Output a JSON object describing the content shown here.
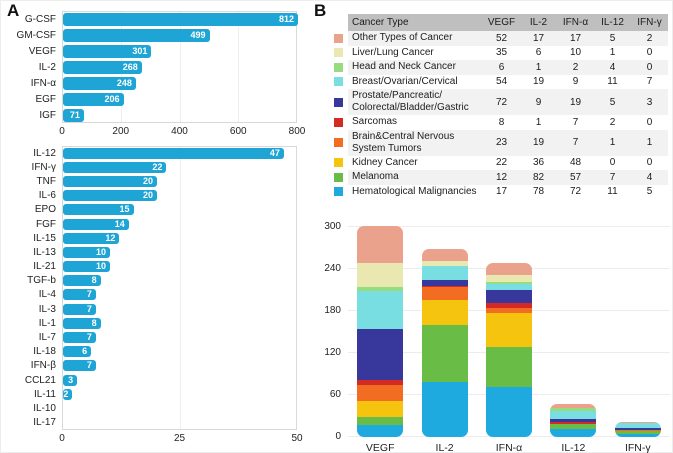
{
  "panel_a_label": "A",
  "panel_b_label": "B",
  "chart_data": [
    {
      "id": "cytokines-high-count",
      "type": "bar",
      "orientation": "horizontal",
      "title": "",
      "categories": [
        "G-CSF",
        "GM-CSF",
        "VEGF",
        "IL-2",
        "IFN-α",
        "EGF",
        "IGF"
      ],
      "values": [
        812,
        499,
        301,
        268,
        248,
        206,
        71
      ],
      "xlim": [
        0,
        800
      ],
      "x_ticks": [
        0,
        200,
        400,
        600,
        800
      ],
      "bar_color": "#1ea5d5",
      "value_labels": "inside-end, white"
    },
    {
      "id": "cytokines-low-count",
      "type": "bar",
      "orientation": "horizontal",
      "title": "",
      "categories": [
        "IL-12",
        "IFN-γ",
        "TNF",
        "IL-6",
        "EPO",
        "FGF",
        "IL-15",
        "IL-13",
        "IL-21",
        "TGF-b",
        "IL-4",
        "IL-3",
        "IL-1",
        "IL-7",
        "IL-18",
        "IFN-β",
        "CCL21",
        "IL-11",
        "IL-10",
        "IL-17"
      ],
      "values": [
        47,
        22,
        20,
        20,
        15,
        14,
        12,
        10,
        10,
        8,
        7,
        7,
        8,
        7,
        6,
        7,
        3,
        2,
        null,
        null
      ],
      "xlim": [
        0,
        50
      ],
      "x_ticks": [
        0,
        25,
        50
      ],
      "bar_color": "#1ea5d5",
      "value_labels": "inside-end, white"
    },
    {
      "id": "cancer-type-table",
      "type": "table",
      "columns": [
        "Cancer Type",
        "VEGF",
        "IL-2",
        "IFN-α",
        "IL-12",
        "IFN-γ"
      ],
      "header_bg": "#bfbfbf",
      "stripe_bg": "#f2f2f2",
      "rows": [
        {
          "name": "Other Types of Cancer",
          "color": "#eba28d",
          "values": [
            52,
            17,
            17,
            5,
            2
          ]
        },
        {
          "name": "Liver/Lung Cancer",
          "color": "#e9e8b1",
          "values": [
            35,
            6,
            10,
            1,
            0
          ]
        },
        {
          "name": "Head and Neck Cancer",
          "color": "#97dd80",
          "values": [
            6,
            1,
            2,
            4,
            0
          ]
        },
        {
          "name": "Breast/Ovarian/Cervical",
          "color": "#79dee2",
          "values": [
            54,
            19,
            9,
            11,
            7
          ]
        },
        {
          "name": "Prostate/Pancreatic/​Colorectal/Bladder/Gastric",
          "color": "#37379c",
          "values": [
            72,
            9,
            19,
            5,
            3
          ]
        },
        {
          "name": "Sarcomas",
          "color": "#d42a24",
          "values": [
            8,
            1,
            7,
            2,
            0
          ]
        },
        {
          "name": "Brain&Central Nervous System Tumors",
          "color": "#f26d21",
          "values": [
            23,
            19,
            7,
            1,
            1
          ]
        },
        {
          "name": "Kidney Cancer",
          "color": "#f4c40e",
          "values": [
            22,
            36,
            48,
            0,
            0
          ]
        },
        {
          "name": "Melanoma",
          "color": "#69bc45",
          "values": [
            12,
            82,
            57,
            7,
            4
          ]
        },
        {
          "name": "Hematological Malignancies",
          "color": "#1ea9df",
          "values": [
            17,
            78,
            72,
            11,
            5
          ]
        }
      ]
    },
    {
      "id": "cancer-by-cytokine-stacked",
      "type": "bar",
      "subtype": "stacked",
      "title": "",
      "categories": [
        "VEGF",
        "IL-2",
        "IFN-α",
        "IL-12",
        "IFN-γ"
      ],
      "ylim": [
        0,
        300
      ],
      "y_ticks": [
        0,
        60,
        120,
        180,
        240,
        300
      ],
      "grid": "horizontal",
      "stack_note": "first series is top of stack; Hematological Malignancies at bottom",
      "series": [
        {
          "name": "Other Types of Cancer",
          "color": "#eba28d",
          "values": [
            52,
            17,
            17,
            5,
            2
          ]
        },
        {
          "name": "Liver/Lung Cancer",
          "color": "#e9e8b1",
          "values": [
            35,
            6,
            10,
            1,
            0
          ]
        },
        {
          "name": "Head and Neck Cancer",
          "color": "#97dd80",
          "values": [
            6,
            1,
            2,
            4,
            0
          ]
        },
        {
          "name": "Breast/Ovarian/Cervical",
          "color": "#79dee2",
          "values": [
            54,
            19,
            9,
            11,
            7
          ]
        },
        {
          "name": "Prostate/Pancreatic/Colorectal/Bladder/Gastric",
          "color": "#37379c",
          "values": [
            72,
            9,
            19,
            5,
            3
          ]
        },
        {
          "name": "Sarcomas",
          "color": "#d42a24",
          "values": [
            8,
            1,
            7,
            2,
            0
          ]
        },
        {
          "name": "Brain&Central Nervous System Tumors",
          "color": "#f26d21",
          "values": [
            23,
            19,
            7,
            1,
            1
          ]
        },
        {
          "name": "Kidney Cancer",
          "color": "#f4c40e",
          "values": [
            22,
            36,
            48,
            0,
            0
          ]
        },
        {
          "name": "Melanoma",
          "color": "#69bc45",
          "values": [
            12,
            82,
            57,
            7,
            4
          ]
        },
        {
          "name": "Hematological Malignancies",
          "color": "#1ea9df",
          "values": [
            17,
            78,
            72,
            11,
            5
          ]
        }
      ]
    }
  ]
}
